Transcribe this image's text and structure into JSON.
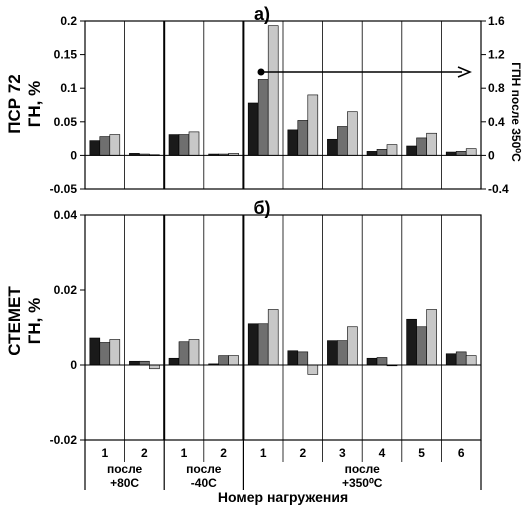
{
  "chart_data": [
    {
      "type": "bar",
      "panel_label": "а)",
      "ylabel_lines": [
        "ПСР 72",
        "ГН, %"
      ],
      "ylabel_right": "ГПН после 350⁰С",
      "ylim": [
        -0.05,
        0.2
      ],
      "y_ticks": [
        "-0.05",
        "0",
        "0.05",
        "0.1",
        "0.15",
        "0.2"
      ],
      "y_tick_values": [
        -0.05,
        0,
        0.05,
        0.1,
        0.15,
        0.2
      ],
      "ylim_right": [
        -0.4,
        1.6
      ],
      "y_ticks_right": [
        "-0.4",
        "0",
        "0.4",
        "0.8",
        "1.2",
        "1.6"
      ],
      "y_tick_values_right": [
        -0.4,
        0,
        0.4,
        0.8,
        1.2,
        1.6
      ],
      "grid": "vertical dividers between loadings",
      "series": [
        {
          "color": "#1a1a1a",
          "values": [
            0.022,
            0.003,
            0.031,
            0.002,
            0.078,
            0.038,
            0.024,
            0.006,
            0.014,
            0.005
          ]
        },
        {
          "color": "#6f6f6f",
          "values": [
            0.028,
            0.002,
            0.031,
            0.002,
            0.113,
            0.052,
            0.043,
            0.009,
            0.026,
            0.006
          ]
        },
        {
          "color": "#c8c8c8",
          "values": [
            0.031,
            0.001,
            0.035,
            0.003,
            0.193,
            0.09,
            0.065,
            0.016,
            0.033,
            0.01
          ]
        }
      ]
    },
    {
      "type": "bar",
      "panel_label": "б)",
      "ylabel_lines": [
        "СТЕМЕТ",
        "ГН, %"
      ],
      "ylim": [
        -0.02,
        0.04
      ],
      "y_ticks": [
        "-0.02",
        "0",
        "0.02",
        "0.04"
      ],
      "y_tick_values": [
        -0.02,
        0,
        0.02,
        0.04
      ],
      "series": [
        {
          "color": "#1a1a1a",
          "values": [
            0.0072,
            0.001,
            0.0018,
            0.0003,
            0.011,
            0.0038,
            0.0065,
            0.0018,
            0.0122,
            0.003
          ]
        },
        {
          "color": "#6f6f6f",
          "values": [
            0.006,
            0.001,
            0.0062,
            0.0025,
            0.011,
            0.0035,
            0.0065,
            0.002,
            0.0102,
            0.0035
          ]
        },
        {
          "color": "#c8c8c8",
          "values": [
            0.0068,
            -0.001,
            0.0068,
            0.0025,
            0.0148,
            -0.0025,
            0.0102,
            0.0,
            0.0148,
            0.0025
          ]
        }
      ]
    }
  ],
  "categories": [
    "1",
    "2",
    "1",
    "2",
    "1",
    "2",
    "3",
    "4",
    "5",
    "6"
  ],
  "groups": [
    {
      "lines": [
        "после",
        "+80С"
      ]
    },
    {
      "lines": [
        "после",
        "-40С"
      ]
    },
    {
      "lines": [
        "после",
        "+350⁰С"
      ]
    }
  ],
  "xlabel": "Номер нагружения",
  "group_sizes": [
    2,
    2,
    6
  ]
}
